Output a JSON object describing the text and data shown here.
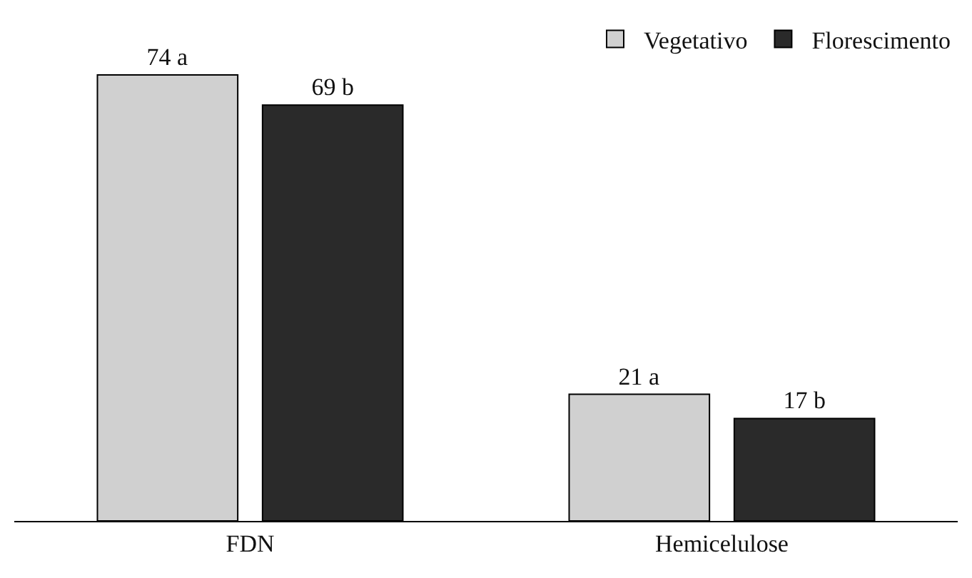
{
  "chart_data": {
    "type": "bar",
    "categories": [
      "FDN",
      "Hemicelulose"
    ],
    "series": [
      {
        "name": "Vegetativo",
        "color": "#d0d0d0",
        "values": [
          74,
          21
        ],
        "value_labels": [
          "74 a",
          "21 a"
        ]
      },
      {
        "name": "Florescimento",
        "color": "#2a2a2a",
        "values": [
          69,
          17
        ],
        "value_labels": [
          "69 b",
          "17 b"
        ]
      }
    ],
    "legend": "top right",
    "grid": false
  }
}
